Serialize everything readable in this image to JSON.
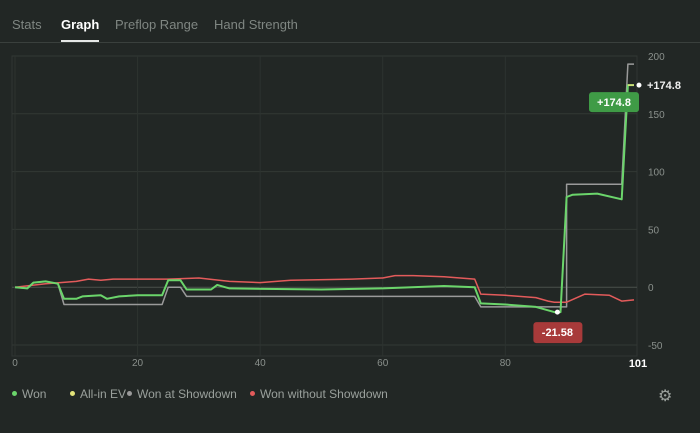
{
  "tabs": [
    {
      "label": "Stats",
      "active": false
    },
    {
      "label": "Graph",
      "active": true
    },
    {
      "label": "Preflop Range",
      "active": false
    },
    {
      "label": "Hand Strength",
      "active": false
    }
  ],
  "chart_data": {
    "type": "line",
    "x_ticks": [
      0,
      20,
      40,
      60,
      80
    ],
    "x_end_label": "101",
    "xlim": [
      0,
      101
    ],
    "y_ticks": [
      200,
      150,
      100,
      50,
      0,
      -50
    ],
    "ylim": [
      -50,
      200
    ],
    "series": [
      {
        "name": "Won",
        "color": "#6bd56b",
        "points": [
          [
            0,
            0
          ],
          [
            2,
            -1
          ],
          [
            3,
            4
          ],
          [
            5,
            5
          ],
          [
            7,
            3
          ],
          [
            8,
            -10
          ],
          [
            10,
            -10
          ],
          [
            11,
            -8
          ],
          [
            14,
            -7
          ],
          [
            15,
            -10
          ],
          [
            17,
            -8
          ],
          [
            20,
            -7
          ],
          [
            24,
            -7
          ],
          [
            25,
            6
          ],
          [
            27,
            6
          ],
          [
            28,
            -2
          ],
          [
            32,
            -2
          ],
          [
            33,
            2
          ],
          [
            35,
            -1
          ],
          [
            50,
            -2
          ],
          [
            60,
            -1
          ],
          [
            70,
            1
          ],
          [
            75,
            0
          ],
          [
            76,
            -14
          ],
          [
            80,
            -15
          ],
          [
            85,
            -17
          ],
          [
            88,
            -21.58
          ],
          [
            89,
            -21.58
          ],
          [
            90,
            78
          ],
          [
            91,
            80
          ],
          [
            95,
            81
          ],
          [
            99,
            76
          ],
          [
            100,
            174.8
          ],
          [
            101,
            174.8
          ]
        ]
      },
      {
        "name": "All-in EV",
        "color": "#e3e37a",
        "points": [
          [
            100,
            174.8
          ],
          [
            101,
            174.8
          ]
        ]
      },
      {
        "name": "Won at Showdown",
        "color": "#9a9a9a",
        "points": [
          [
            0,
            0
          ],
          [
            2,
            -1
          ],
          [
            3,
            4
          ],
          [
            5,
            5
          ],
          [
            7,
            3
          ],
          [
            8,
            -15
          ],
          [
            24,
            -15
          ],
          [
            25,
            0
          ],
          [
            27,
            0
          ],
          [
            28,
            -8
          ],
          [
            75,
            -8
          ],
          [
            76,
            -17
          ],
          [
            87,
            -17
          ],
          [
            90,
            -17
          ],
          [
            90,
            89
          ],
          [
            99,
            89
          ],
          [
            100,
            193
          ],
          [
            101,
            193
          ]
        ]
      },
      {
        "name": "Won without Showdown",
        "color": "#e35b5b",
        "points": [
          [
            0,
            0
          ],
          [
            5,
            3
          ],
          [
            10,
            5
          ],
          [
            12,
            7
          ],
          [
            14,
            6
          ],
          [
            16,
            7
          ],
          [
            25,
            7
          ],
          [
            30,
            8
          ],
          [
            35,
            5
          ],
          [
            40,
            4
          ],
          [
            45,
            6
          ],
          [
            55,
            7
          ],
          [
            60,
            8
          ],
          [
            62,
            10
          ],
          [
            65,
            10
          ],
          [
            70,
            9
          ],
          [
            75,
            7
          ],
          [
            76,
            -6
          ],
          [
            80,
            -7
          ],
          [
            85,
            -9
          ],
          [
            87,
            -12
          ],
          [
            88,
            -13
          ],
          [
            90,
            -13
          ],
          [
            93,
            -6
          ],
          [
            97,
            -7
          ],
          [
            99,
            -12
          ],
          [
            101,
            -11
          ]
        ]
      }
    ],
    "annotations": [
      {
        "label": "+174.8",
        "value": 174.8,
        "x": 101,
        "color": "#3f9b46"
      },
      {
        "label": "-21.58",
        "value": -21.58,
        "x": 88.5,
        "color": "#a83a3a"
      }
    ],
    "end_label": "+174.8"
  },
  "legend": [
    {
      "label": "Won",
      "color": "#6bd56b"
    },
    {
      "label": "All-in EV",
      "color": "#e3e37a"
    },
    {
      "label": "Won at Showdown",
      "color": "#9a9a9a"
    },
    {
      "label": "Won without Showdown",
      "color": "#e35b5b"
    }
  ],
  "settings": {
    "icon": "gear-icon"
  }
}
